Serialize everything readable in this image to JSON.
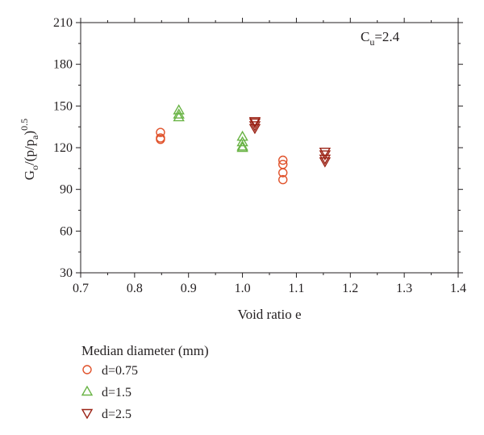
{
  "chart_data": {
    "type": "scatter",
    "xlabel": "Void ratio e",
    "ylabel": {
      "base": "G",
      "sub0": "o",
      "mid": "/(p/p",
      "sub1": "a",
      "close": ")",
      "sup": "0.5"
    },
    "annotation": {
      "base": "C",
      "sub": "u",
      "rest": "=2.4"
    },
    "xlim": [
      0.7,
      1.4
    ],
    "ylim": [
      30,
      210
    ],
    "xticks": [
      "0.7",
      "0.8",
      "0.9",
      "1.0",
      "1.1",
      "1.2",
      "1.3",
      "1.4"
    ],
    "yticks": [
      "30",
      "60",
      "90",
      "120",
      "150",
      "180",
      "210"
    ],
    "grid": false,
    "legend": {
      "title": "Median diameter (mm)",
      "placement": "below"
    },
    "series": [
      {
        "name": "d=0.75",
        "marker": "circle",
        "color": "#e0522b",
        "points": [
          [
            0.848,
            131
          ],
          [
            0.848,
            127
          ],
          [
            0.848,
            126
          ],
          [
            1.075,
            111
          ],
          [
            1.075,
            108
          ],
          [
            1.075,
            102
          ],
          [
            1.075,
            97
          ]
        ]
      },
      {
        "name": "d=1.5",
        "marker": "triangle-up",
        "color": "#6ab446",
        "points": [
          [
            0.882,
            147
          ],
          [
            0.882,
            144
          ],
          [
            0.882,
            142
          ],
          [
            1.0,
            128
          ],
          [
            1.0,
            124
          ],
          [
            1.0,
            121
          ],
          [
            1.0,
            120
          ]
        ]
      },
      {
        "name": "d=2.5",
        "marker": "triangle-down",
        "color": "#9b2316",
        "points": [
          [
            1.023,
            139
          ],
          [
            1.023,
            138
          ],
          [
            1.023,
            136
          ],
          [
            1.023,
            134
          ],
          [
            1.153,
            117
          ],
          [
            1.153,
            115
          ],
          [
            1.153,
            112
          ],
          [
            1.153,
            110
          ]
        ]
      }
    ]
  }
}
